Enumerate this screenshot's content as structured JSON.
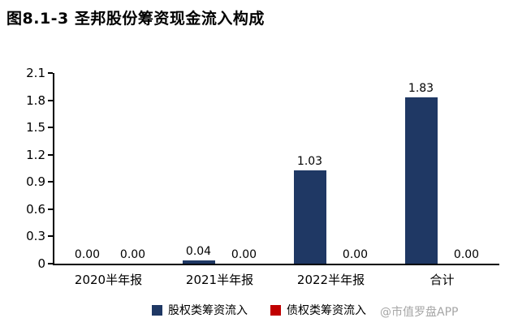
{
  "title": "图8.1-3 圣邦股份筹资现金流入构成",
  "watermark": "@市值罗盘APP",
  "colors": {
    "equity_bar": "#1F3864",
    "debt_bar": "#C00000",
    "axis": "#000000",
    "watermark": "#A6A6A6"
  },
  "chart_data": {
    "type": "bar",
    "title": "图8.1-3 圣邦股份筹资现金流入构成",
    "categories": [
      "2020半年报",
      "2021半年报",
      "2022半年报",
      "合计"
    ],
    "series": [
      {
        "name": "股权类筹资流入",
        "color": "#1F3864",
        "values": [
          0.0,
          0.04,
          1.03,
          1.83
        ],
        "labels": [
          "0.00",
          "0.04",
          "1.03",
          "1.83"
        ]
      },
      {
        "name": "债权类筹资流入",
        "color": "#C00000",
        "values": [
          0.0,
          0.0,
          0.0,
          0.0
        ],
        "labels": [
          "0.00",
          "0.00",
          "0.00",
          "0.00"
        ]
      }
    ],
    "ylim": [
      0,
      2.1
    ],
    "ytick_labels": [
      "0",
      "0.3",
      "0.6",
      "0.9",
      "1.2",
      "1.5",
      "1.8",
      "2.1"
    ],
    "grid": false,
    "legend_position": "bottom"
  }
}
